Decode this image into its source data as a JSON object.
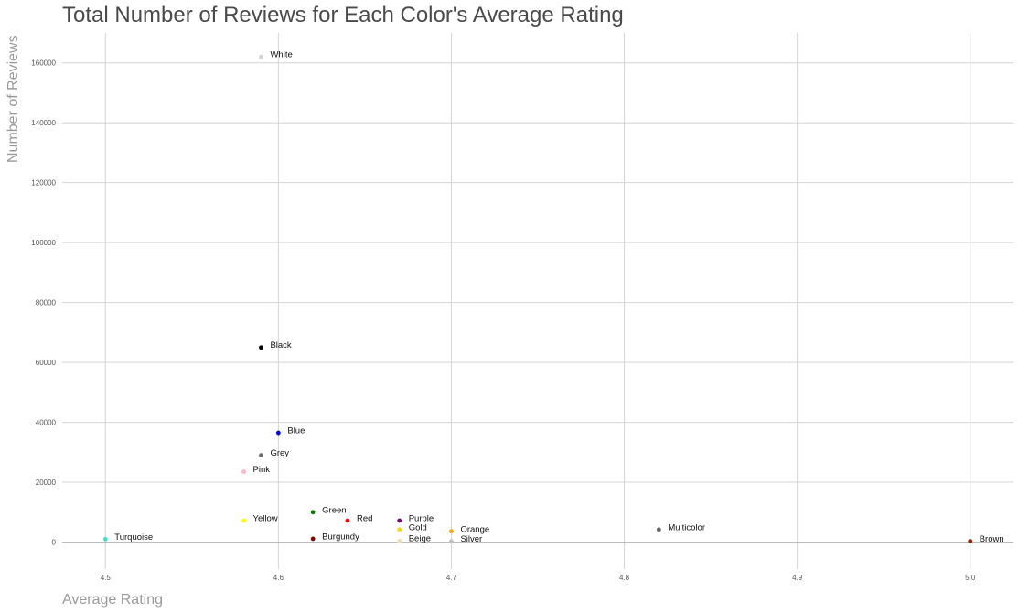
{
  "chart_data": {
    "type": "scatter",
    "title": "Total Number of Reviews for Each Color's Average Rating",
    "xlabel": "Average Rating",
    "ylabel": "Number of Reviews",
    "xlim": [
      4.475,
      5.025
    ],
    "ylim": [
      -9000,
      170000
    ],
    "x_ticks": [
      4.5,
      4.6,
      4.7,
      4.8,
      4.9,
      5.0
    ],
    "x_tick_labels": [
      "4.5",
      "4.6",
      "4.7",
      "4.8",
      "4.9",
      "5.0"
    ],
    "y_ticks": [
      0,
      20000,
      40000,
      60000,
      80000,
      100000,
      120000,
      140000,
      160000
    ],
    "y_tick_labels": [
      "0",
      "20000",
      "40000",
      "60000",
      "80000",
      "100000",
      "120000",
      "140000",
      "160000"
    ],
    "grid": true,
    "legend": "none",
    "points": [
      {
        "label": "White",
        "x": 4.59,
        "y": 162000,
        "color": "#d3d3d3"
      },
      {
        "label": "Black",
        "x": 4.59,
        "y": 65000,
        "color": "#000000"
      },
      {
        "label": "Blue",
        "x": 4.6,
        "y": 36500,
        "color": "#0000ff"
      },
      {
        "label": "Grey",
        "x": 4.59,
        "y": 29000,
        "color": "#6e6e6e"
      },
      {
        "label": "Pink",
        "x": 4.58,
        "y": 23500,
        "color": "#ffb6c1"
      },
      {
        "label": "Green",
        "x": 4.62,
        "y": 10000,
        "color": "#008000"
      },
      {
        "label": "Red",
        "x": 4.64,
        "y": 7200,
        "color": "#ff0000"
      },
      {
        "label": "Yellow",
        "x": 4.58,
        "y": 7200,
        "color": "#ffff00"
      },
      {
        "label": "Purple",
        "x": 4.67,
        "y": 7200,
        "color": "#800080"
      },
      {
        "label": "Gold",
        "x": 4.67,
        "y": 4200,
        "color": "#ffd700"
      },
      {
        "label": "Orange",
        "x": 4.7,
        "y": 3600,
        "color": "#ffa500"
      },
      {
        "label": "Multicolor",
        "x": 4.82,
        "y": 4200,
        "color": "#666666"
      },
      {
        "label": "Turquoise",
        "x": 4.5,
        "y": 1000,
        "color": "#40e0d0"
      },
      {
        "label": "Burgundy",
        "x": 4.62,
        "y": 1100,
        "color": "#8b0000"
      },
      {
        "label": "Beige",
        "x": 4.67,
        "y": 400,
        "color": "#f5deb3"
      },
      {
        "label": "Silver",
        "x": 4.7,
        "y": 250,
        "color": "#c0c0c0"
      },
      {
        "label": "Brown",
        "x": 5.0,
        "y": 300,
        "color": "#8b2500"
      }
    ]
  }
}
